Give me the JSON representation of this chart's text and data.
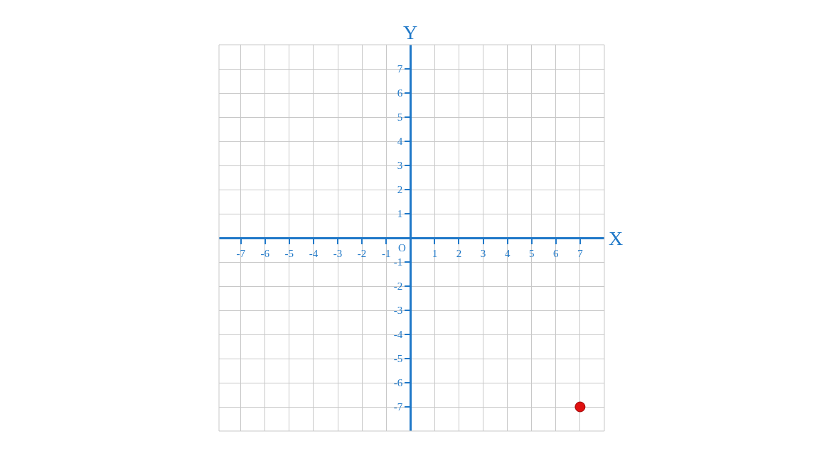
{
  "chart_data": {
    "type": "scatter",
    "xlabel": "X",
    "ylabel": "Y",
    "x": [
      7
    ],
    "values": [
      -7
    ],
    "color": "#e01010",
    "marker": "circle",
    "xlim": [
      -7.9,
      8
    ],
    "ylim": [
      -8,
      8
    ],
    "xticks": [
      -7,
      -6,
      -5,
      -4,
      -3,
      -2,
      -1,
      {
        "value": 0,
        "label": null
      },
      1,
      2,
      3,
      4,
      5,
      6,
      7
    ],
    "annotations": [
      "O"
    ],
    "yticks": [
      -7,
      -6,
      -5,
      -4,
      -3,
      -2,
      -1,
      {
        "value": 0,
        "label": null
      },
      1,
      2,
      3,
      4,
      5,
      6,
      7
    ],
    "grid": true
  }
}
